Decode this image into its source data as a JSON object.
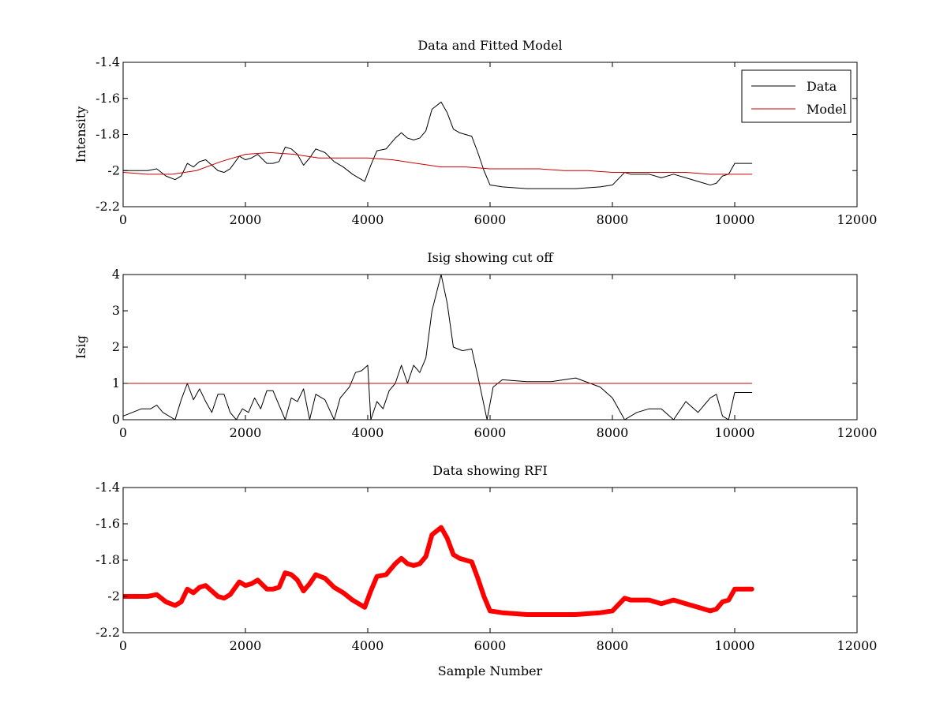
{
  "chart_data": [
    {
      "type": "line",
      "title": "Data and Fitted Model",
      "xlabel": "",
      "ylabel": "Intensity",
      "xlim": [
        0,
        12000
      ],
      "ylim": [
        -2.2,
        -1.4
      ],
      "xticks": [
        0,
        2000,
        4000,
        6000,
        8000,
        10000,
        12000
      ],
      "yticks": [
        -2.2,
        -2,
        -1.8,
        -1.6,
        -1.4
      ],
      "xtick_labels": [
        "0",
        "2000",
        "4000",
        "6000",
        "8000",
        "10000",
        "12000"
      ],
      "ytick_labels": [
        "-2.2",
        "-2",
        "-1.8",
        "-1.6",
        "-1.4"
      ],
      "grid": false,
      "legend": {
        "position": "top-right",
        "entries": [
          "Data",
          "Model"
        ]
      },
      "series": [
        {
          "name": "Data",
          "color": "#000000",
          "x": [
            0,
            200,
            400,
            550,
            700,
            850,
            950,
            1050,
            1150,
            1250,
            1350,
            1450,
            1550,
            1650,
            1750,
            1900,
            2000,
            2100,
            2200,
            2350,
            2450,
            2550,
            2650,
            2750,
            2850,
            2950,
            3050,
            3150,
            3300,
            3450,
            3600,
            3750,
            3850,
            3950,
            4050,
            4150,
            4300,
            4450,
            4550,
            4650,
            4750,
            4850,
            4950,
            5050,
            5200,
            5300,
            5400,
            5500,
            5600,
            5700,
            5800,
            5900,
            6000,
            6200,
            6600,
            7000,
            7400,
            7800,
            8000,
            8200,
            8300,
            8400,
            8600,
            8800,
            9000,
            9200,
            9400,
            9600,
            9700,
            9800,
            9900,
            10000,
            10100,
            10280
          ],
          "y": [
            -2.0,
            -2.0,
            -2.0,
            -1.99,
            -2.03,
            -2.05,
            -2.03,
            -1.96,
            -1.98,
            -1.95,
            -1.94,
            -1.97,
            -2.0,
            -2.01,
            -1.99,
            -1.92,
            -1.94,
            -1.93,
            -1.91,
            -1.96,
            -1.96,
            -1.95,
            -1.87,
            -1.88,
            -1.91,
            -1.97,
            -1.93,
            -1.88,
            -1.9,
            -1.95,
            -1.98,
            -2.02,
            -2.04,
            -2.06,
            -1.97,
            -1.89,
            -1.88,
            -1.82,
            -1.79,
            -1.82,
            -1.83,
            -1.82,
            -1.78,
            -1.66,
            -1.62,
            -1.68,
            -1.77,
            -1.79,
            -1.8,
            -1.81,
            -1.9,
            -2.0,
            -2.08,
            -2.09,
            -2.1,
            -2.1,
            -2.1,
            -2.09,
            -2.08,
            -2.01,
            -2.02,
            -2.02,
            -2.02,
            -2.04,
            -2.02,
            -2.04,
            -2.06,
            -2.08,
            -2.07,
            -2.03,
            -2.02,
            -1.96,
            -1.96,
            -1.96
          ]
        },
        {
          "name": "Model",
          "color": "#cc0000",
          "x": [
            0,
            400,
            800,
            1200,
            1600,
            2000,
            2400,
            2800,
            3200,
            3600,
            4000,
            4400,
            4800,
            5200,
            5600,
            6000,
            6400,
            6800,
            7200,
            7600,
            8000,
            8400,
            8800,
            9200,
            9600,
            10000,
            10280
          ],
          "y": [
            -2.01,
            -2.02,
            -2.02,
            -2.0,
            -1.95,
            -1.91,
            -1.9,
            -1.91,
            -1.93,
            -1.93,
            -1.93,
            -1.94,
            -1.96,
            -1.98,
            -1.98,
            -1.99,
            -1.99,
            -1.99,
            -2.0,
            -2.0,
            -2.01,
            -2.01,
            -2.01,
            -2.01,
            -2.02,
            -2.02,
            -2.02
          ]
        }
      ]
    },
    {
      "type": "line",
      "title": "Isig showing cut off",
      "xlabel": "",
      "ylabel": "Isig",
      "xlim": [
        0,
        12000
      ],
      "ylim": [
        0,
        4
      ],
      "xticks": [
        0,
        2000,
        4000,
        6000,
        8000,
        10000,
        12000
      ],
      "yticks": [
        0,
        1,
        2,
        3,
        4
      ],
      "xtick_labels": [
        "0",
        "2000",
        "4000",
        "6000",
        "8000",
        "10000",
        "12000"
      ],
      "ytick_labels": [
        "0",
        "1",
        "2",
        "3",
        "4"
      ],
      "grid": false,
      "series": [
        {
          "color": "#000000",
          "x": [
            0,
            150,
            300,
            450,
            550,
            650,
            850,
            950,
            1050,
            1150,
            1250,
            1350,
            1450,
            1550,
            1650,
            1750,
            1850,
            1950,
            2050,
            2150,
            2250,
            2350,
            2450,
            2550,
            2650,
            2750,
            2850,
            2950,
            3050,
            3150,
            3300,
            3450,
            3550,
            3700,
            3800,
            3900,
            4000,
            4050,
            4150,
            4250,
            4350,
            4450,
            4550,
            4650,
            4750,
            4850,
            4950,
            5050,
            5200,
            5300,
            5400,
            5550,
            5700,
            5800,
            5950,
            6050,
            6200,
            6600,
            7000,
            7400,
            7800,
            8000,
            8200,
            8400,
            8600,
            8800,
            9000,
            9200,
            9400,
            9600,
            9700,
            9800,
            9900,
            10000,
            10280
          ],
          "y": [
            0.1,
            0.2,
            0.3,
            0.3,
            0.4,
            0.2,
            0.0,
            0.55,
            1.0,
            0.55,
            0.85,
            0.5,
            0.2,
            0.7,
            0.7,
            0.2,
            0.0,
            0.3,
            0.2,
            0.6,
            0.3,
            0.8,
            0.8,
            0.4,
            0.0,
            0.6,
            0.5,
            0.85,
            0.0,
            0.7,
            0.55,
            0.0,
            0.6,
            0.9,
            1.3,
            1.35,
            1.5,
            0.0,
            0.5,
            0.3,
            0.8,
            1.0,
            1.5,
            1.0,
            1.5,
            1.3,
            1.7,
            3.0,
            4.0,
            3.2,
            2.0,
            1.9,
            1.95,
            1.2,
            0.0,
            0.9,
            1.1,
            1.05,
            1.05,
            1.15,
            0.9,
            0.6,
            0.0,
            0.2,
            0.3,
            0.3,
            0.0,
            0.5,
            0.2,
            0.6,
            0.7,
            0.1,
            0.0,
            0.75,
            0.75
          ]
        },
        {
          "color": "#cc0000",
          "x": [
            0,
            10280
          ],
          "y": [
            1,
            1
          ]
        }
      ]
    },
    {
      "type": "line",
      "title": "Data showing RFI",
      "xlabel": "Sample Number",
      "ylabel": "",
      "xlim": [
        0,
        12000
      ],
      "ylim": [
        -2.2,
        -1.4
      ],
      "xticks": [
        0,
        2000,
        4000,
        6000,
        8000,
        10000,
        12000
      ],
      "yticks": [
        -2.2,
        -2,
        -1.8,
        -1.6,
        -1.4
      ],
      "xtick_labels": [
        "0",
        "2000",
        "4000",
        "6000",
        "8000",
        "10000",
        "12000"
      ],
      "ytick_labels": [
        "-2.2",
        "-2",
        "-1.8",
        "-1.6",
        "-1.4"
      ],
      "grid": false,
      "series": [
        {
          "color": "#ff0000",
          "x": [
            0,
            200,
            400,
            550,
            700,
            850,
            950,
            1050,
            1150,
            1250,
            1350,
            1450,
            1550,
            1650,
            1750,
            1900,
            2000,
            2100,
            2200,
            2350,
            2450,
            2550,
            2650,
            2750,
            2850,
            2950,
            3050,
            3150,
            3300,
            3450,
            3600,
            3750,
            3850,
            3950,
            4050,
            4150,
            4300,
            4450,
            4550,
            4650,
            4750,
            4850,
            4950,
            5050,
            5200,
            5300,
            5400,
            5500,
            5600,
            5700,
            5800,
            5900,
            6000,
            6200,
            6600,
            7000,
            7400,
            7800,
            8000,
            8200,
            8300,
            8400,
            8600,
            8800,
            9000,
            9200,
            9400,
            9600,
            9700,
            9800,
            9900,
            10000,
            10100,
            10280
          ],
          "y": [
            -2.0,
            -2.0,
            -2.0,
            -1.99,
            -2.03,
            -2.05,
            -2.03,
            -1.96,
            -1.98,
            -1.95,
            -1.94,
            -1.97,
            -2.0,
            -2.01,
            -1.99,
            -1.92,
            -1.94,
            -1.93,
            -1.91,
            -1.96,
            -1.96,
            -1.95,
            -1.87,
            -1.88,
            -1.91,
            -1.97,
            -1.93,
            -1.88,
            -1.9,
            -1.95,
            -1.98,
            -2.02,
            -2.04,
            -2.06,
            -1.97,
            -1.89,
            -1.88,
            -1.82,
            -1.79,
            -1.82,
            -1.83,
            -1.82,
            -1.78,
            -1.66,
            -1.62,
            -1.68,
            -1.77,
            -1.79,
            -1.8,
            -1.81,
            -1.9,
            -2.0,
            -2.08,
            -2.09,
            -2.1,
            -2.1,
            -2.1,
            -2.09,
            -2.08,
            -2.01,
            -2.02,
            -2.02,
            -2.02,
            -2.04,
            -2.02,
            -2.04,
            -2.06,
            -2.08,
            -2.07,
            -2.03,
            -2.02,
            -1.96,
            -1.96,
            -1.96
          ]
        }
      ]
    }
  ]
}
